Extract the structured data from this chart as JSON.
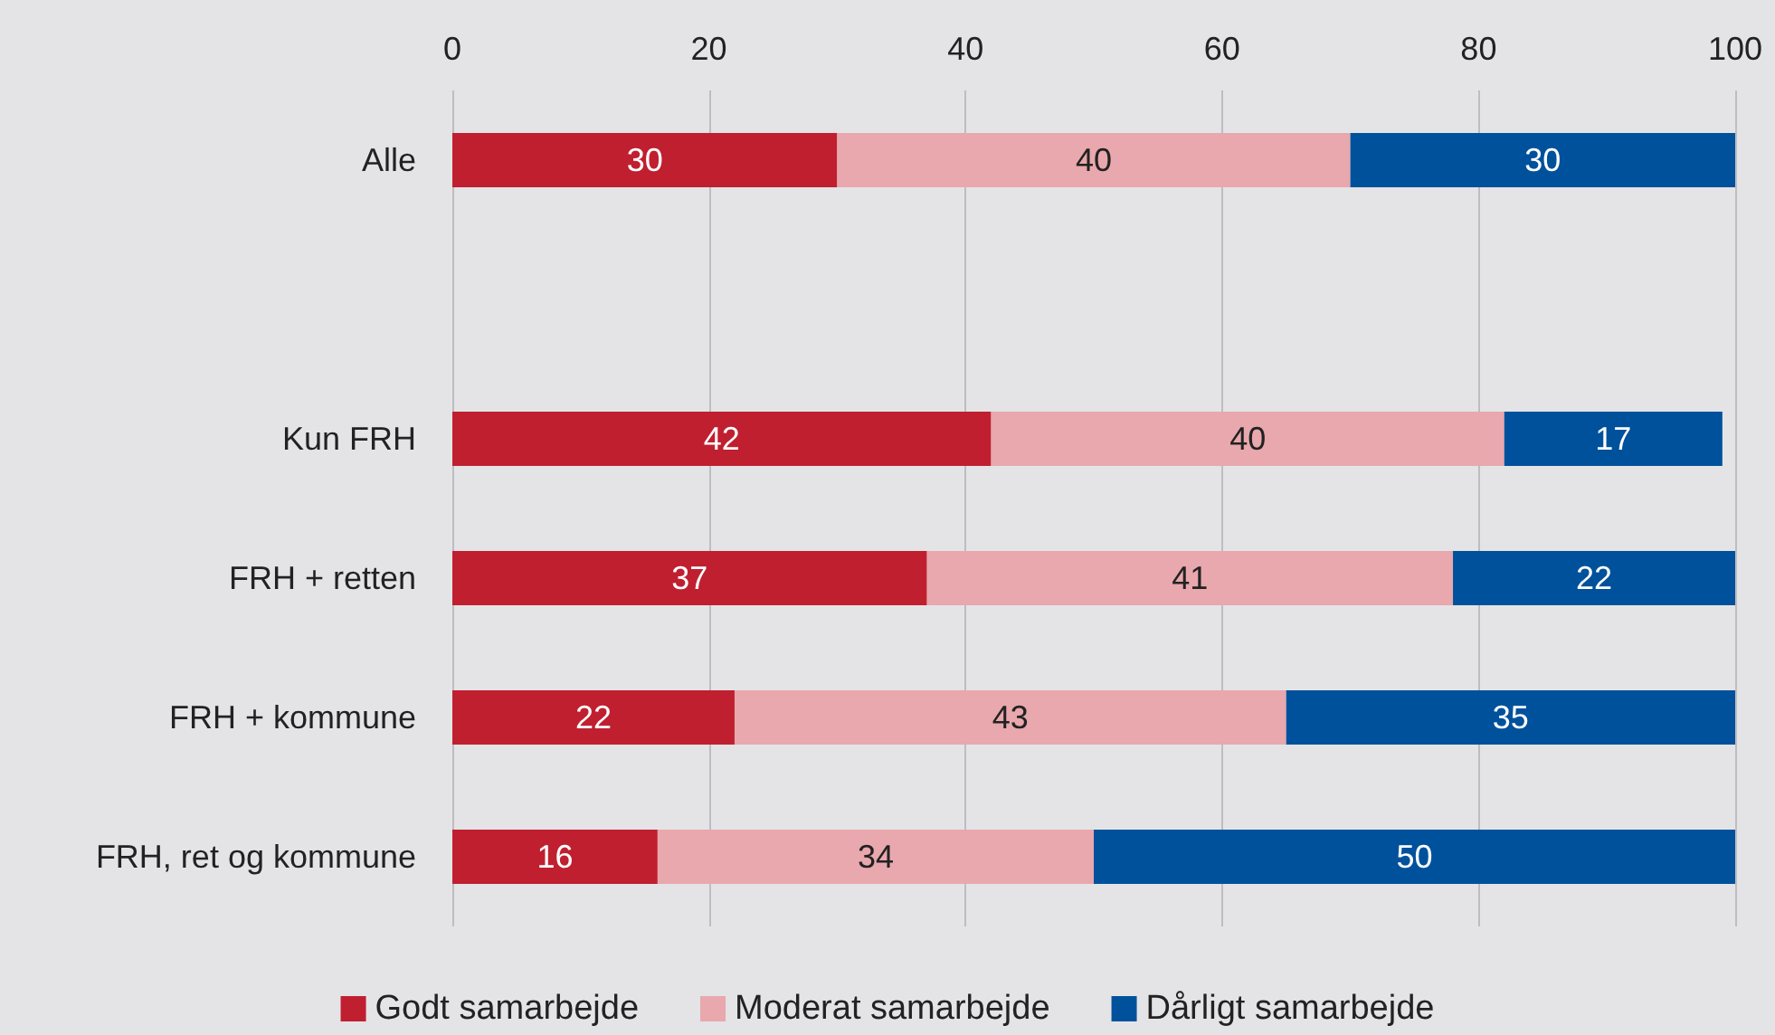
{
  "chart_data": {
    "type": "bar",
    "orientation": "horizontal",
    "stacked": true,
    "categories": [
      "Alle",
      null,
      "Kun FRH",
      "FRH + retten",
      "FRH + kommune",
      "FRH, ret og kommune"
    ],
    "series": [
      {
        "name": "Godt samarbejde",
        "color": "#c01f30",
        "values": [
          30,
          null,
          42,
          37,
          22,
          16
        ]
      },
      {
        "name": "Moderat samarbejde",
        "color": "#e8a8ad",
        "values": [
          40,
          null,
          40,
          41,
          43,
          34
        ]
      },
      {
        "name": "Dårligt samarbejde",
        "color": "#00519c",
        "values": [
          30,
          null,
          17,
          22,
          35,
          50
        ]
      }
    ],
    "xlim": [
      0,
      100
    ],
    "xticks": [
      0,
      20,
      40,
      60,
      80,
      100
    ],
    "data_labels": true,
    "legend": "bottom",
    "grid": "x"
  }
}
